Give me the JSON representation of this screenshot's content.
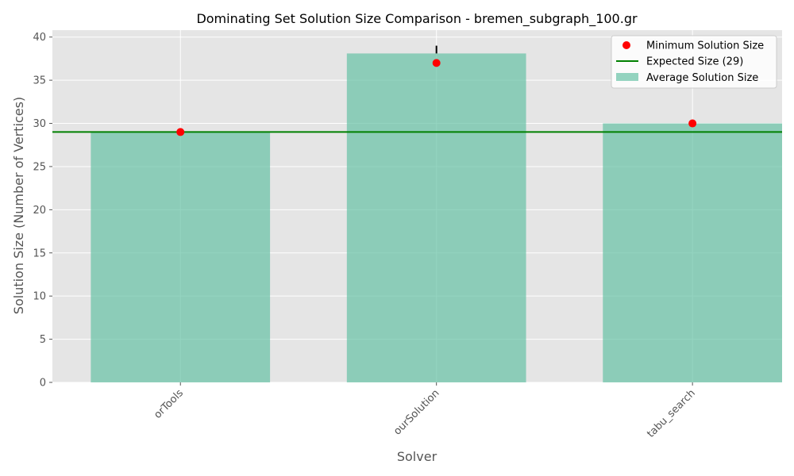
{
  "chart_data": {
    "type": "bar",
    "title": "Dominating Set Solution Size Comparison - bremen_subgraph_100.gr",
    "xlabel": "Solver",
    "ylabel": "Solution Size (Number of Vertices)",
    "categories": [
      "orTools",
      "ourSolution",
      "tabu_search"
    ],
    "series": [
      {
        "name": "Average Solution Size",
        "kind": "bar",
        "values": [
          29.0,
          38.1,
          30.0
        ],
        "error_upper": [
          0,
          0.9,
          0
        ],
        "color": "#66c2a5"
      },
      {
        "name": "Minimum Solution Size",
        "kind": "scatter",
        "values": [
          29,
          37,
          30
        ],
        "color": "#ff0000"
      }
    ],
    "reference_line": {
      "name": "Expected Size (29)",
      "value": 29,
      "color": "#008000"
    },
    "ylim": [
      0,
      40.8
    ],
    "yticks": [
      0,
      5,
      10,
      15,
      20,
      25,
      30,
      35,
      40
    ],
    "grid": true,
    "legend_position": "top-right"
  }
}
